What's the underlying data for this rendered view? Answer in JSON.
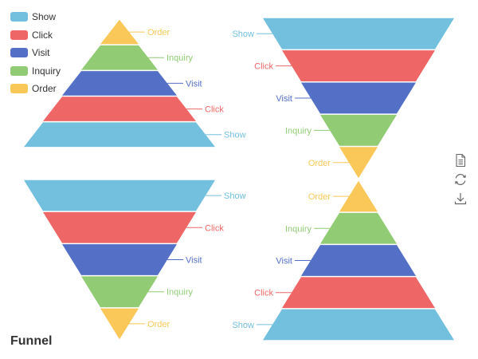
{
  "title": "Funnel",
  "legend": {
    "items": [
      {
        "label": "Show",
        "color": "#73c0de"
      },
      {
        "label": "Click",
        "color": "#ee6666"
      },
      {
        "label": "Visit",
        "color": "#5470c6"
      },
      {
        "label": "Inquiry",
        "color": "#91cc75"
      },
      {
        "label": "Order",
        "color": "#fac858"
      }
    ]
  },
  "toolbox": {
    "icons": [
      "data-view-icon",
      "restore-icon",
      "save-image-icon"
    ]
  },
  "chart_data": [
    {
      "type": "funnel",
      "sort": "ascending",
      "label_position": "right",
      "categories": [
        "Order",
        "Inquiry",
        "Visit",
        "Click",
        "Show"
      ],
      "values": [
        20,
        40,
        60,
        80,
        100
      ]
    },
    {
      "type": "funnel",
      "sort": "descending",
      "label_position": "right",
      "categories": [
        "Show",
        "Click",
        "Visit",
        "Inquiry",
        "Order"
      ],
      "values": [
        100,
        80,
        60,
        40,
        20
      ]
    },
    {
      "type": "funnel",
      "sort": "descending",
      "label_position": "left",
      "categories": [
        "Show",
        "Click",
        "Visit",
        "Inquiry",
        "Order"
      ],
      "values": [
        100,
        80,
        60,
        40,
        20
      ]
    },
    {
      "type": "funnel",
      "sort": "ascending",
      "label_position": "left",
      "categories": [
        "Order",
        "Inquiry",
        "Visit",
        "Click",
        "Show"
      ],
      "values": [
        20,
        40,
        60,
        80,
        100
      ]
    }
  ]
}
